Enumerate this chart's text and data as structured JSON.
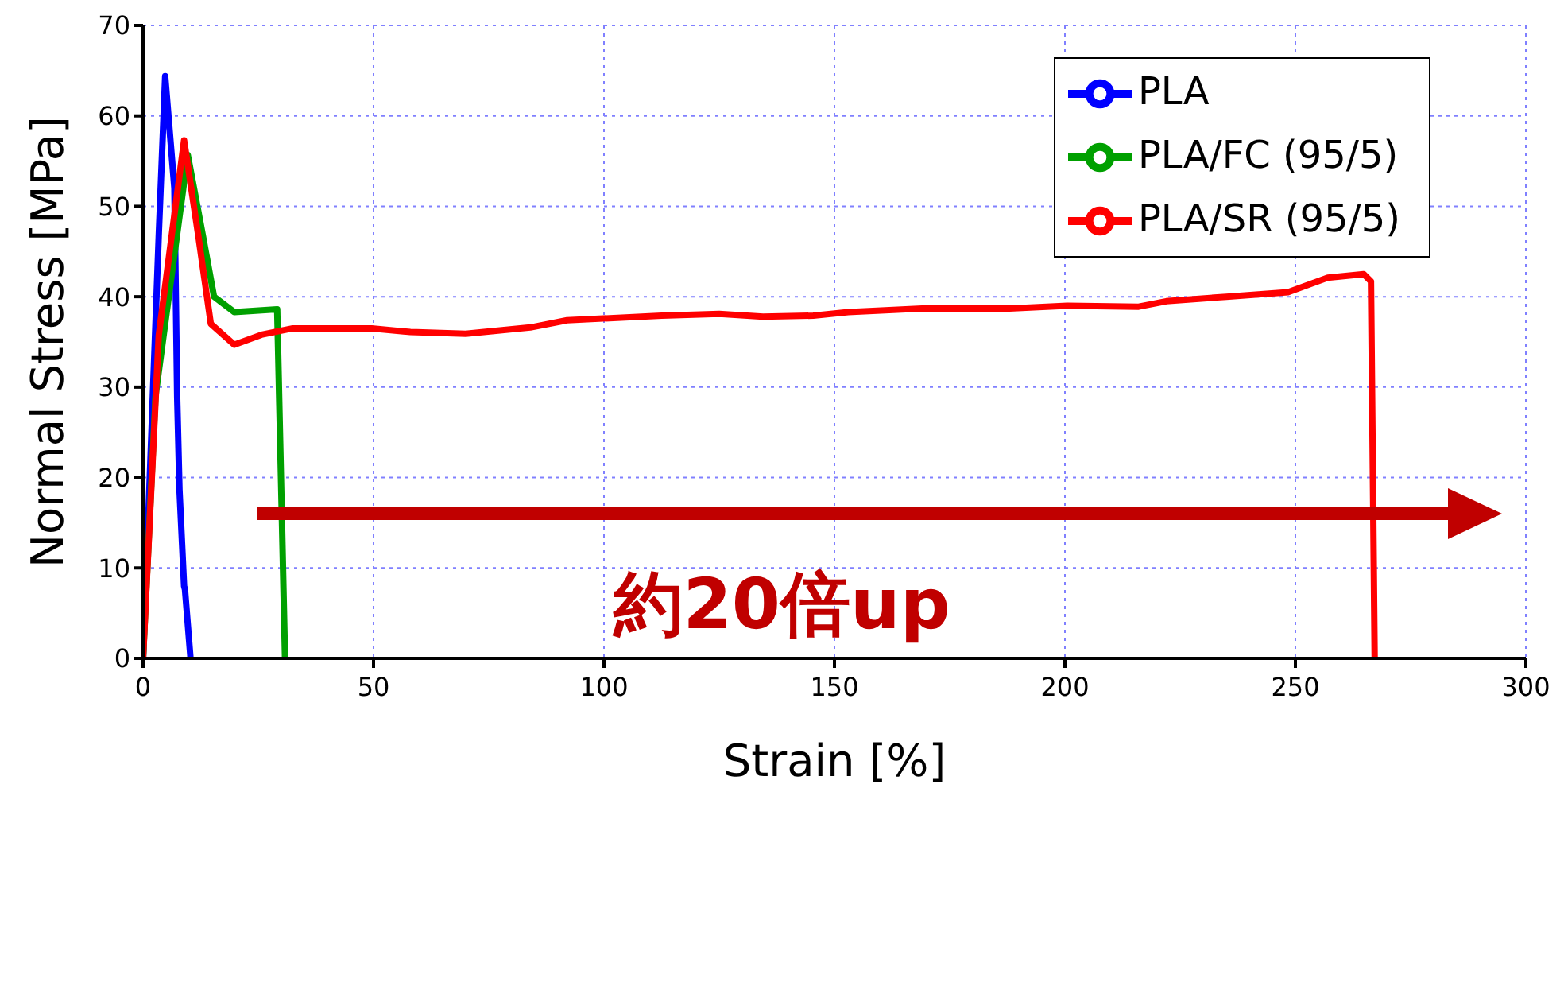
{
  "chart_data": {
    "type": "line",
    "xlabel": "Strain [%]",
    "ylabel": "Normal Stress [MPa]",
    "xlim": [
      0,
      300
    ],
    "xticks": [
      0,
      50,
      100,
      150,
      200,
      250,
      300
    ],
    "ylim": [
      0,
      70
    ],
    "yticks": [
      0,
      10,
      20,
      30,
      40,
      50,
      60,
      70
    ],
    "grid": true,
    "legend": "top right",
    "marker": "none",
    "line_style": "solid",
    "annotations": [
      "約20倍up"
    ],
    "series": [
      {
        "name": "PLA",
        "color": "#0000ff",
        "x": [
          0,
          3.4,
          4.8,
          6.8,
          7.4,
          7.9,
          8.9,
          9.1,
          10.3
        ],
        "values": [
          0,
          46.7,
          64.4,
          52,
          29,
          18.7,
          8,
          7.6,
          0
        ]
      },
      {
        "name": "PLA/FC (95/5)",
        "color": "#00a000",
        "x": [
          0,
          2.7,
          9.7,
          13,
          15.4,
          19.8,
          29.1,
          30.8
        ],
        "values": [
          0,
          29,
          55.7,
          46.7,
          40,
          38.3,
          38.6,
          0
        ]
      },
      {
        "name": "PLA/SR (95/5)",
        "color": "#ff0000",
        "x": [
          0,
          3.4,
          8.9,
          12,
          14.7,
          19.8,
          25.7,
          32.5,
          49.6,
          58,
          70,
          84,
          92,
          112.5,
          125,
          134.5,
          145.4,
          153,
          169,
          188,
          200.5,
          216,
          222,
          235,
          248.4,
          257,
          264.8,
          266.4,
          267.2
        ],
        "values": [
          0,
          35.7,
          57.3,
          46.7,
          37,
          34.7,
          35.8,
          36.5,
          36.5,
          36.1,
          35.9,
          36.6,
          37.4,
          37.9,
          38.1,
          37.8,
          37.9,
          38.3,
          38.7,
          38.7,
          39,
          38.9,
          39.5,
          40,
          40.5,
          42.1,
          42.5,
          41.7,
          0
        ]
      }
    ]
  }
}
